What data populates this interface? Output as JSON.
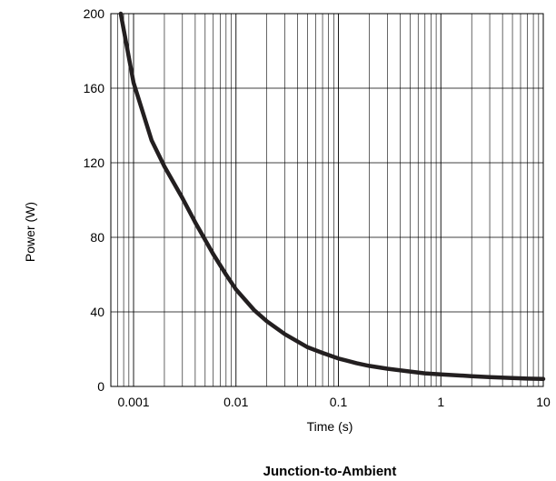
{
  "chart_data": {
    "type": "line",
    "title": "",
    "caption": "Junction-to-Ambient",
    "xlabel": "Time (s)",
    "ylabel": "Power (W)",
    "xscale": "log",
    "xlim": [
      0.0006,
      10
    ],
    "ylim": [
      0,
      200
    ],
    "grid": true,
    "x_ticks": [
      {
        "value": 0.001,
        "label": "0.001"
      },
      {
        "value": 0.01,
        "label": "0.01"
      },
      {
        "value": 0.1,
        "label": "0.1"
      },
      {
        "value": 1,
        "label": "1"
      },
      {
        "value": 10,
        "label": "10"
      }
    ],
    "y_ticks": [
      {
        "value": 0,
        "label": "0"
      },
      {
        "value": 40,
        "label": "40"
      },
      {
        "value": 80,
        "label": "80"
      },
      {
        "value": 120,
        "label": "120"
      },
      {
        "value": 160,
        "label": "160"
      },
      {
        "value": 200,
        "label": "200"
      }
    ],
    "series": [
      {
        "color": "#231f20",
        "x": [
          0.00075,
          0.001,
          0.0015,
          0.002,
          0.003,
          0.004,
          0.006,
          0.008,
          0.01,
          0.015,
          0.02,
          0.03,
          0.05,
          0.07,
          0.1,
          0.15,
          0.2,
          0.3,
          0.5,
          0.7,
          1,
          2,
          3,
          5,
          7,
          10
        ],
        "y": [
          200,
          163,
          132,
          118,
          101,
          88,
          71,
          60,
          52,
          41,
          35,
          28,
          21,
          18,
          15,
          12.5,
          11,
          9.5,
          8,
          7,
          6.5,
          5.5,
          5,
          4.5,
          4.2,
          4
        ]
      }
    ]
  }
}
